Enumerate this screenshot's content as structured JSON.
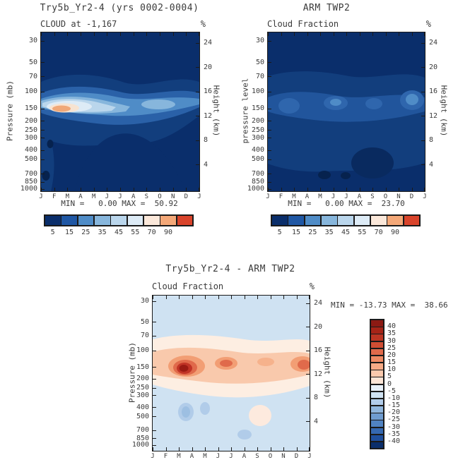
{
  "figure": {
    "months": [
      "J",
      "F",
      "M",
      "A",
      "M",
      "J",
      "J",
      "A",
      "S",
      "O",
      "N",
      "D",
      "J"
    ],
    "pressure_ticks_mb": [
      30,
      50,
      70,
      100,
      150,
      200,
      250,
      300,
      400,
      500,
      700,
      850,
      1000
    ],
    "height_ticks_km": [
      24,
      20,
      16,
      12,
      8,
      4
    ]
  },
  "panels": {
    "model": {
      "title": "Try5b_Yr2-4 (yrs 0002-0004)",
      "subtitle": "CLOUD at -1,167",
      "units": "%",
      "ylabel": "Pressure (mb)",
      "y2label": "Height (km)",
      "minmax": "MIN =   0.00 MAX =  50.92",
      "colorbar": {
        "labels": [
          "5",
          "15",
          "25",
          "35",
          "45",
          "55",
          "70",
          "90"
        ],
        "colors": [
          "#0a2e6b",
          "#1f57a4",
          "#4f8cc7",
          "#87b6dc",
          "#bad6ec",
          "#ddebf6",
          "#fbe8da",
          "#f4a878",
          "#d9442b"
        ]
      }
    },
    "obs": {
      "title": "ARM TWP2",
      "subtitle": "Cloud Fraction",
      "units": "%",
      "ylabel": "pressure level",
      "y2label": "Height (km)",
      "minmax": "MIN =   0.00 MAX =  23.70",
      "colorbar": {
        "labels": [
          "5",
          "15",
          "25",
          "35",
          "45",
          "55",
          "70",
          "90"
        ],
        "colors": [
          "#0a2e6b",
          "#1f57a4",
          "#4f8cc7",
          "#87b6dc",
          "#bad6ec",
          "#ddebf6",
          "#fbe8da",
          "#f4a878",
          "#d9442b"
        ]
      }
    },
    "diff": {
      "title": "Try5b_Yr2-4 - ARM TWP2",
      "subtitle": "Cloud Fraction",
      "units": "%",
      "ylabel": "Pressure (mb)",
      "y2label": "Height (km)",
      "minmax": "MIN = -13.73 MAX =  38.66",
      "colorbar": {
        "labels": [
          "40",
          "35",
          "30",
          "25",
          "20",
          "15",
          "10",
          "5",
          "0",
          "-5",
          "-10",
          "-15",
          "-20",
          "-25",
          "-30",
          "-35",
          "-40"
        ],
        "colors": [
          "#8c1a13",
          "#a62417",
          "#bc3523",
          "#d04d33",
          "#e06a4b",
          "#ee8a64",
          "#f5aa86",
          "#fac9ad",
          "#fde5d6",
          "#e9f1f9",
          "#cfe2f2",
          "#b1cce9",
          "#90b6dd",
          "#6f9cd0",
          "#5083c2",
          "#3568b0",
          "#1f4f9d",
          "#0a2e6b"
        ]
      }
    }
  },
  "chart_data": [
    {
      "type": "heatmap",
      "title": "Try5b_Yr2-4 (yrs 0002-0004)",
      "subtitle": "CLOUD at -1,167",
      "units": "%",
      "x_months": [
        "J",
        "F",
        "M",
        "A",
        "M",
        "J",
        "J",
        "A",
        "S",
        "O",
        "N",
        "D",
        "J"
      ],
      "y_pressure_mb": [
        30,
        50,
        70,
        100,
        150,
        200,
        250,
        300,
        400,
        500,
        700,
        850,
        1000
      ],
      "y2_height_km": [
        24,
        20,
        16,
        12,
        8,
        4
      ],
      "y_scale": "log-pressure (30 top to 1000 bottom)",
      "min": 0.0,
      "max": 50.92,
      "contour_levels": [
        5,
        15,
        25,
        35,
        45,
        55,
        70,
        90
      ],
      "palette": "dark-blue (low) to red (high)",
      "estimated": true,
      "band_peak_percent_by_month": [
        35,
        48,
        45,
        28,
        20,
        14,
        12,
        13,
        20,
        25,
        18,
        15,
        35
      ],
      "features": [
        "Upper-tropospheric cloud band between 100 and 250 mb across all months",
        "Maximum ~50% (salmon core) near 150-200 mb in Feb-Mar",
        "Secondary lighter maximum near 150-250 mb around Sep-Oct",
        "Cloud fraction <5% through most of the lower troposphere",
        "Small near-zero minima near 400 mb and 700-850 mb in Jan"
      ]
    },
    {
      "type": "heatmap",
      "title": "ARM TWP2",
      "subtitle": "Cloud Fraction",
      "units": "%",
      "x_months": [
        "J",
        "F",
        "M",
        "A",
        "M",
        "J",
        "J",
        "A",
        "S",
        "O",
        "N",
        "D",
        "J"
      ],
      "y_pressure_mb": [
        30,
        50,
        70,
        100,
        150,
        200,
        250,
        300,
        400,
        500,
        700,
        850,
        1000
      ],
      "y2_height_km": [
        24,
        20,
        16,
        12,
        8,
        4
      ],
      "y_scale": "log-pressure (30 top to 1000 bottom)",
      "min": 0.0,
      "max": 23.7,
      "contour_levels": [
        5,
        15,
        25,
        35,
        45,
        55,
        70,
        90
      ],
      "palette": "dark-blue (low) to red (high)",
      "estimated": true,
      "band_peak_percent_by_month": [
        12,
        14,
        15,
        13,
        12,
        12,
        12,
        12,
        13,
        15,
        16,
        14,
        12
      ],
      "features": [
        "Weak, fairly uniform upper-level cloud band near 100-250 mb (~10-20%)",
        "Slightly stronger patches around Feb-Mar, May-Jun and Nov-Dec",
        "Maximum 23.70% overall",
        "Near-zero minima near 700-850 mb around Jun-Aug"
      ]
    },
    {
      "type": "heatmap",
      "title": "Try5b_Yr2-4 - ARM TWP2",
      "subtitle": "Cloud Fraction",
      "units": "%",
      "x_months": [
        "J",
        "F",
        "M",
        "A",
        "M",
        "J",
        "J",
        "A",
        "S",
        "O",
        "N",
        "D",
        "J"
      ],
      "y_pressure_mb": [
        30,
        50,
        70,
        100,
        150,
        200,
        250,
        300,
        400,
        500,
        700,
        850,
        1000
      ],
      "y2_height_km": [
        24,
        20,
        16,
        12,
        8,
        4
      ],
      "y_scale": "log-pressure (30 top to 1000 bottom)",
      "min": -13.73,
      "max": 38.66,
      "contour_levels": [
        -40,
        -35,
        -30,
        -25,
        -20,
        -15,
        -10,
        -5,
        0,
        5,
        10,
        15,
        20,
        25,
        30,
        35,
        40
      ],
      "palette": "blue (negative) to red (positive), white near zero",
      "estimated": true,
      "band_diff_percent_by_month": [
        18,
        28,
        38,
        30,
        15,
        18,
        10,
        8,
        12,
        10,
        10,
        18,
        18
      ],
      "features": [
        "Model exceeds observations by up to ~39% near 150-200 mb, strongest Feb-Apr (dark red core)",
        "Positive difference band along 100-250 mb for all months",
        "Small negative differences (~-5 to -14%) near 400-500 mb in Mar-May",
        "Weak negative patches near 700-850 mb mid-year; background slightly negative"
      ]
    }
  ]
}
